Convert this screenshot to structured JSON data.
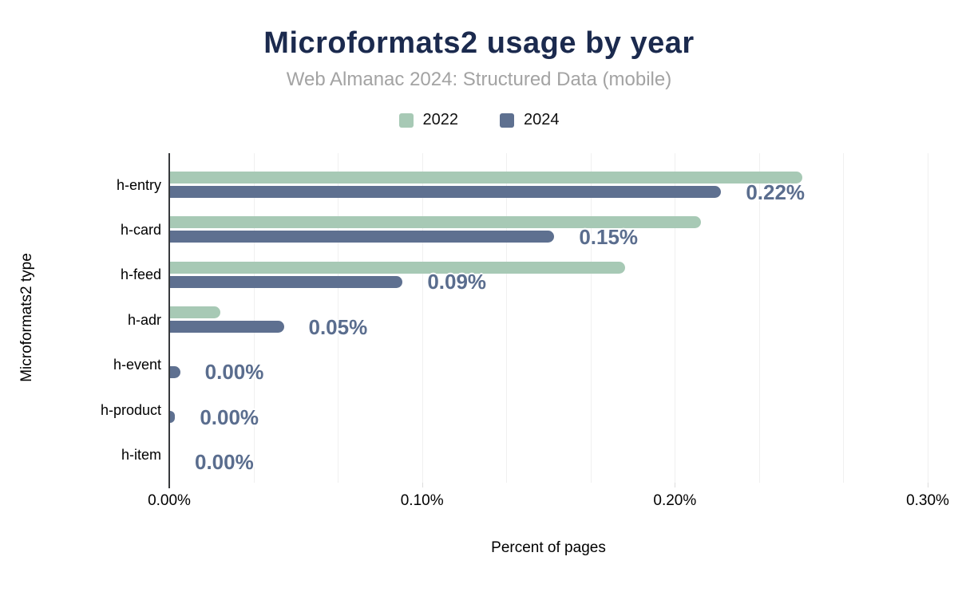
{
  "chart": {
    "title": "Microformats2 usage by year",
    "subtitle": "Web Almanac 2024: Structured Data (mobile)",
    "x_axis": {
      "title": "Percent of pages",
      "tick_labels": [
        "0.00%",
        "0.10%",
        "0.20%",
        "0.30%"
      ]
    },
    "y_axis": {
      "title": "Microformats2 type"
    },
    "legend": [
      {
        "label": "2022",
        "color": "#a7c9b5"
      },
      {
        "label": "2024",
        "color": "#5e7090"
      }
    ]
  },
  "chart_data": {
    "type": "bar",
    "orientation": "horizontal",
    "title": "Microformats2 usage by year",
    "subtitle": "Web Almanac 2024: Structured Data (mobile)",
    "categories": [
      "h-entry",
      "h-card",
      "h-feed",
      "h-adr",
      "h-event",
      "h-product",
      "h-item"
    ],
    "series": [
      {
        "name": "2022",
        "color": "#a7c9b5",
        "values": [
          0.25,
          0.21,
          0.18,
          0.02,
          0,
          0,
          0
        ],
        "labels": null
      },
      {
        "name": "2024",
        "color": "#5e7090",
        "values": [
          0.218,
          0.152,
          0.092,
          0.045,
          0.004,
          0.002,
          0
        ],
        "labels": [
          "0.22%",
          "0.15%",
          "0.09%",
          "0.05%",
          "0.00%",
          "0.00%",
          "0.00%"
        ]
      }
    ],
    "xlabel": "Percent of pages",
    "ylabel": "Microformats2 type",
    "xlim": [
      0,
      0.3
    ],
    "x_tick_values": [
      0,
      0.1,
      0.2,
      0.3
    ],
    "x_tick_labels": [
      "0.00%",
      "0.10%",
      "0.20%",
      "0.30%"
    ],
    "minor_gridline_step": 0.03333,
    "grid": true,
    "legend_position": "top",
    "data_label_color": "#5a6d8e",
    "title_color": "#1b2a4e",
    "subtitle_color": "#a3a3a3"
  }
}
